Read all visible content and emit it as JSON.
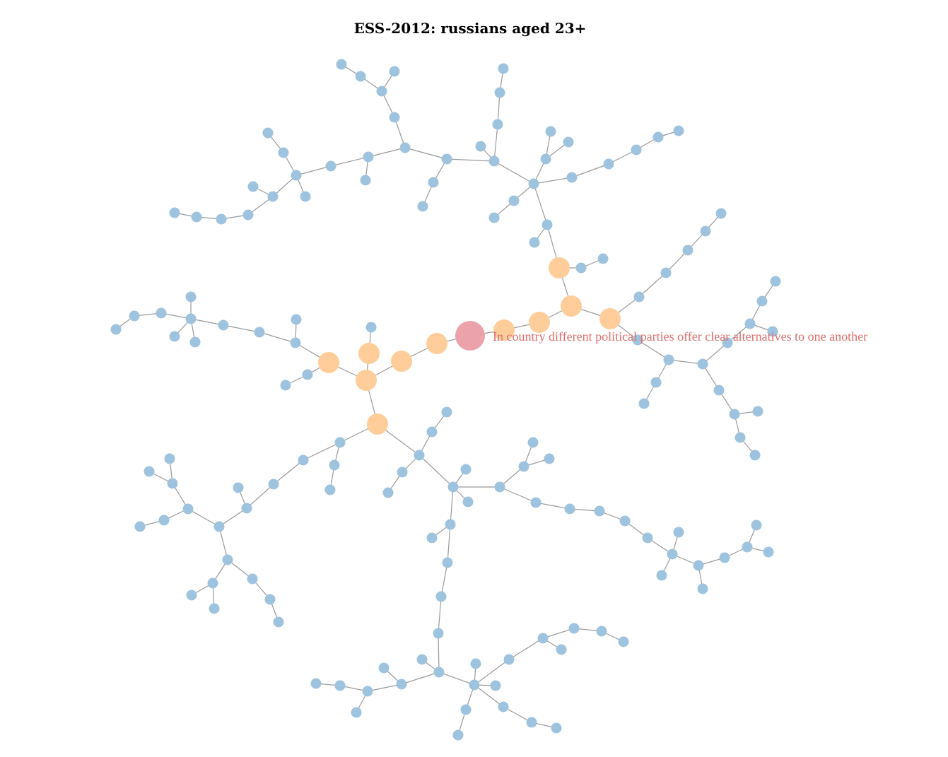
{
  "title": "ESS-2012: russians aged 23+",
  "colors": {
    "regular": "#9ec3df",
    "neighbor": "#ffcd99",
    "selected": "#eba2aa",
    "edge": "#999999",
    "label": "#df6d6d"
  },
  "selected_label": "In country different political parties offer clear alternatives to one another"
}
